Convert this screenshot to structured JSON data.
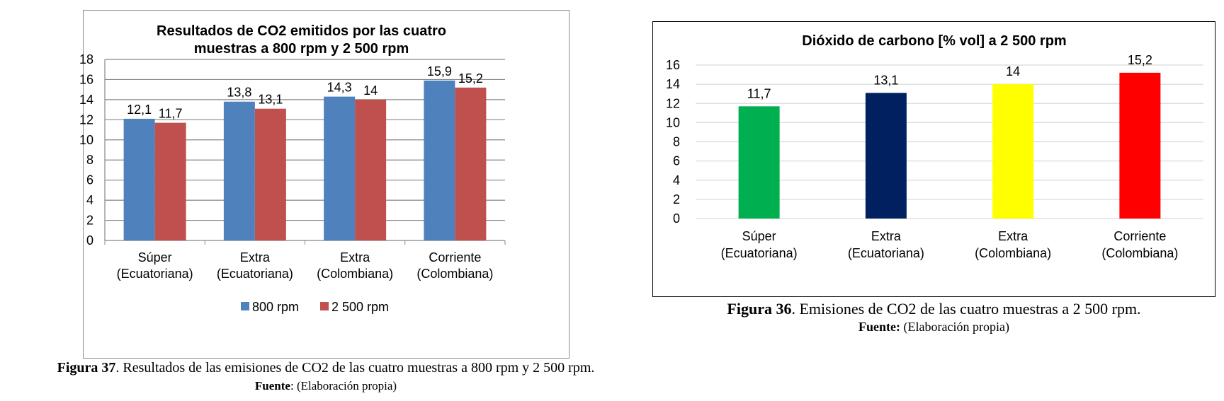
{
  "chart_data": [
    {
      "type": "bar",
      "title": [
        "Resultados de CO2 emitidos por las cuatro",
        "muestras a 800 rpm y 2 500 rpm"
      ],
      "categories": [
        [
          "Súper",
          "(Ecuatoriana)"
        ],
        [
          "Extra",
          "(Ecuatoriana)"
        ],
        [
          "Extra",
          "(Colombiana)"
        ],
        [
          "Corriente",
          "(Colombiana)"
        ]
      ],
      "series": [
        {
          "name": "800 rpm",
          "color": "#4f81bd",
          "values": [
            12.1,
            13.8,
            14.3,
            15.9
          ],
          "labels": [
            "12,1",
            "13,8",
            "14,3",
            "15,9"
          ]
        },
        {
          "name": "2 500 rpm",
          "color": "#c0504d",
          "values": [
            11.7,
            13.1,
            14,
            15.2
          ],
          "labels": [
            "11,7",
            "13,1",
            "14",
            "15,2"
          ]
        }
      ],
      "ylim": [
        0,
        18
      ],
      "yticks": [
        0,
        2,
        4,
        6,
        8,
        10,
        12,
        14,
        16,
        18
      ],
      "grid": true,
      "legend": "bottom"
    },
    {
      "type": "bar",
      "title": [
        "Dióxido de carbono [% vol] a 2 500 rpm"
      ],
      "categories": [
        [
          "Súper",
          "(Ecuatoriana)"
        ],
        [
          "Extra",
          "(Ecuatoriana)"
        ],
        [
          "Extra",
          "(Colombiana)"
        ],
        [
          "Corriente",
          "(Colombiana)"
        ]
      ],
      "series": [
        {
          "values": [
            11.7,
            13.1,
            14,
            15.2
          ],
          "labels": [
            "11,7",
            "13,1",
            "14",
            "15,2"
          ],
          "colors": [
            "#00b050",
            "#002060",
            "#ffff00",
            "#ff0000"
          ]
        }
      ],
      "ylim": [
        0,
        16
      ],
      "yticks": [
        0,
        2,
        4,
        6,
        8,
        10,
        12,
        14,
        16
      ],
      "grid": true,
      "legend": "none"
    }
  ],
  "captions": {
    "left": {
      "label": "Figura  37",
      "text": ". Resultados de las emisiones de CO2 de las cuatro muestras a 800 rpm y 2 500 rpm.",
      "source_label": "Fuente",
      "source_text": ": (Elaboración propia)"
    },
    "right": {
      "label": "Figura  36",
      "text": ". Emisiones de CO2 de las cuatro muestras a 2 500 rpm.",
      "source_label": "Fuente:",
      "source_text": " (Elaboración propia)"
    }
  }
}
